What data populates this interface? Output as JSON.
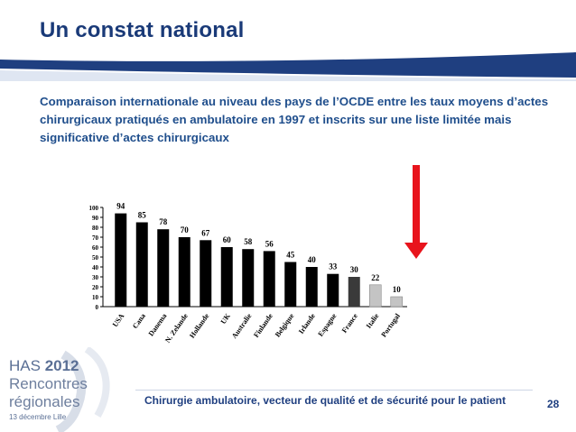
{
  "title": "Un constat national",
  "subtitle": "Comparaison internationale au niveau des pays de l’OCDE entre les taux moyens d’actes chirurgicaux pratiqués en ambulatoire en 1997 et inscrits sur une liste limitée mais significative d’actes chirurgicaux",
  "chart_data": {
    "type": "bar",
    "categories": [
      "USA",
      "Cana",
      "Danema",
      "N. Zelande",
      "Hollande",
      "UK",
      "Australie",
      "Finlande",
      "Belgique",
      "Irlande",
      "Espagne",
      "France",
      "Italie",
      "Portugal"
    ],
    "values": [
      94,
      85,
      78,
      70,
      67,
      60,
      58,
      56,
      45,
      40,
      33,
      30,
      22,
      10
    ],
    "value_labels": [
      "94",
      "85",
      "78",
      "70",
      "67",
      "60",
      "58",
      "56",
      "45",
      "40",
      "33",
      "30",
      "22",
      "10"
    ],
    "ylim": [
      0,
      100
    ],
    "yticks": [
      "0",
      "10",
      "20",
      "30",
      "40",
      "50",
      "60",
      "70",
      "80",
      "90",
      "100"
    ],
    "highlight": "France",
    "colors": {
      "bar": "#000000",
      "highlight": "#3a3a3a",
      "light": "#c4c4c4",
      "arrow": "#e8141c"
    }
  },
  "footer": {
    "text": "Chirurgie ambulatoire, vecteur de qualité et de sécurité pour le patient",
    "page": "28"
  },
  "logo": {
    "has": "HAS ",
    "year": "2012",
    "line1": "Rencontres",
    "line2": "régionales",
    "date": "13 décembre Lille"
  },
  "colors": {
    "title": "#1a3a78",
    "subtitle": "#1f4e8c",
    "band": "#1f3f80"
  }
}
